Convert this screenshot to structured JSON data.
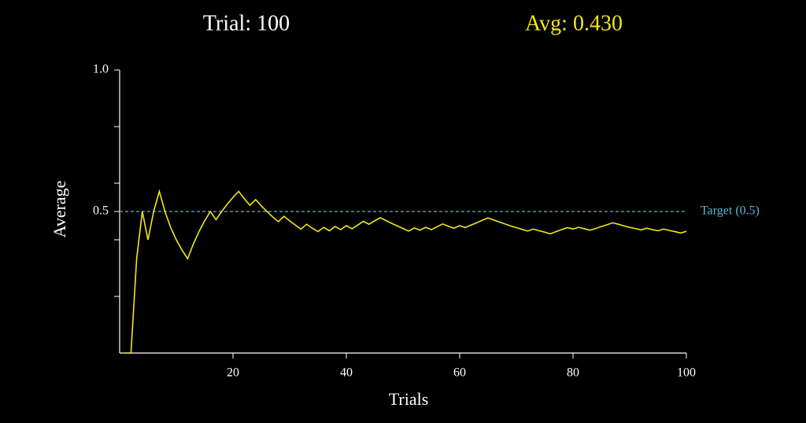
{
  "chart_data": {
    "type": "line",
    "status": {
      "trial": "Trial: 100",
      "average": "Avg: 0.430"
    },
    "x_label": "Trials",
    "y_label": "Average",
    "x": [
      1,
      2,
      3,
      4,
      5,
      6,
      7,
      8,
      9,
      10,
      11,
      12,
      13,
      14,
      15,
      16,
      17,
      18,
      19,
      20,
      21,
      22,
      23,
      24,
      25,
      26,
      27,
      28,
      29,
      30,
      31,
      32,
      33,
      34,
      35,
      36,
      37,
      38,
      39,
      40,
      41,
      42,
      43,
      44,
      45,
      46,
      47,
      48,
      49,
      50,
      51,
      52,
      53,
      54,
      55,
      56,
      57,
      58,
      59,
      60,
      61,
      62,
      63,
      64,
      65,
      66,
      67,
      68,
      69,
      70,
      71,
      72,
      73,
      74,
      75,
      76,
      77,
      78,
      79,
      80,
      81,
      82,
      83,
      84,
      85,
      86,
      87,
      88,
      89,
      90,
      91,
      92,
      93,
      94,
      95,
      96,
      97,
      98,
      99,
      100
    ],
    "values": [
      0,
      0,
      0.333,
      0.5,
      0.4,
      0.5,
      0.571,
      0.5,
      0.444,
      0.4,
      0.364,
      0.333,
      0.385,
      0.429,
      0.467,
      0.5,
      0.471,
      0.5,
      0.526,
      0.55,
      0.571,
      0.545,
      0.522,
      0.542,
      0.52,
      0.5,
      0.481,
      0.464,
      0.483,
      0.467,
      0.452,
      0.438,
      0.455,
      0.441,
      0.429,
      0.444,
      0.432,
      0.447,
      0.436,
      0.45,
      0.439,
      0.452,
      0.465,
      0.455,
      0.467,
      0.478,
      0.468,
      0.458,
      0.449,
      0.44,
      0.431,
      0.442,
      0.434,
      0.444,
      0.436,
      0.446,
      0.456,
      0.448,
      0.441,
      0.45,
      0.443,
      0.452,
      0.46,
      0.469,
      0.477,
      0.47,
      0.463,
      0.456,
      0.449,
      0.443,
      0.437,
      0.431,
      0.438,
      0.432,
      0.427,
      0.421,
      0.429,
      0.436,
      0.443,
      0.438,
      0.444,
      0.439,
      0.434,
      0.44,
      0.447,
      0.453,
      0.46,
      0.455,
      0.449,
      0.444,
      0.44,
      0.435,
      0.441,
      0.436,
      0.432,
      0.438,
      0.433,
      0.429,
      0.424,
      0.43
    ],
    "color": "#f2e61c",
    "target": {
      "value": 0.5,
      "label": "Target (0.5)",
      "color": "#5bb8d4"
    },
    "xlim": [
      0,
      100
    ],
    "xticks": [
      20,
      40,
      60,
      80,
      100
    ],
    "ylim": [
      0,
      1
    ],
    "yticks": [
      {
        "value": 0.5,
        "label": "0.5"
      },
      {
        "value": 1,
        "label": "1.0"
      }
    ],
    "minor_yticks": [
      0.2,
      0.4,
      0.6,
      0.8
    ]
  }
}
